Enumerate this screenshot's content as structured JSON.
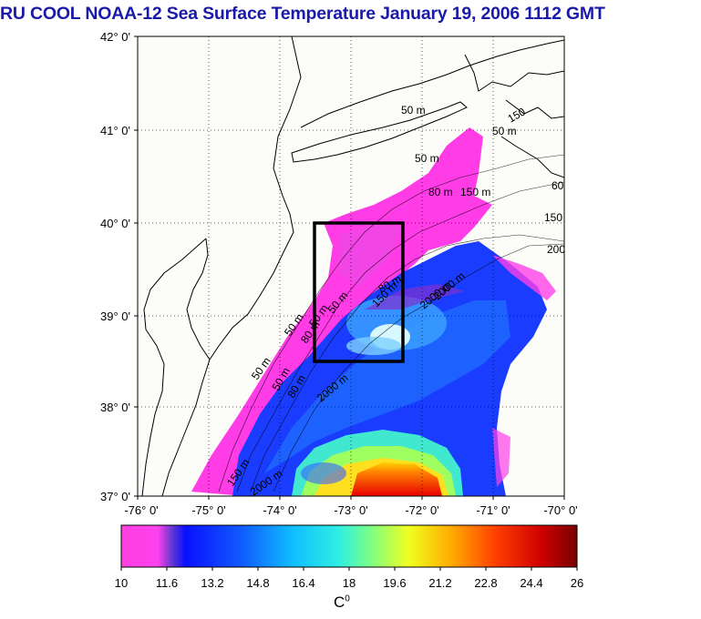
{
  "title": "RU COOL  NOAA-12 Sea Surface Temperature January 19, 2006 1112 GMT",
  "map": {
    "lat_labels": [
      "42° 0'",
      "41° 0'",
      "40° 0'",
      "39° 0'",
      "38° 0'",
      "37° 0'"
    ],
    "lon_labels": [
      "-76° 0'",
      "-75° 0'",
      "-74° 0'",
      "-73° 0'",
      "-72° 0'",
      "-71° 0'",
      "-70° 0'"
    ],
    "lat_range": [
      37,
      42
    ],
    "lon_range": [
      -76,
      -70
    ],
    "grid": true,
    "contour_labels": [
      "50 m",
      "50 m",
      "50 m",
      "80 m",
      "150 m",
      "150",
      "200",
      "60",
      "50 m",
      "80 m",
      "150 m",
      "2000 m",
      "50 m",
      "80 m",
      "2000 m",
      "50 m",
      "2000 m",
      "150 m",
      "50 m",
      "2000 m",
      "150",
      "80 m",
      "50 m"
    ],
    "box_region": {
      "lon": [
        -73.45,
        -72.45
      ],
      "lat": [
        38.5,
        40.0
      ]
    }
  },
  "colorbar": {
    "tick_labels": [
      "10",
      "11.6",
      "13.2",
      "14.8",
      "16.4",
      "18",
      "19.6",
      "21.2",
      "22.8",
      "24.4",
      "26"
    ],
    "unit": "C",
    "unit_sup": "0",
    "range": [
      10,
      26
    ]
  }
}
